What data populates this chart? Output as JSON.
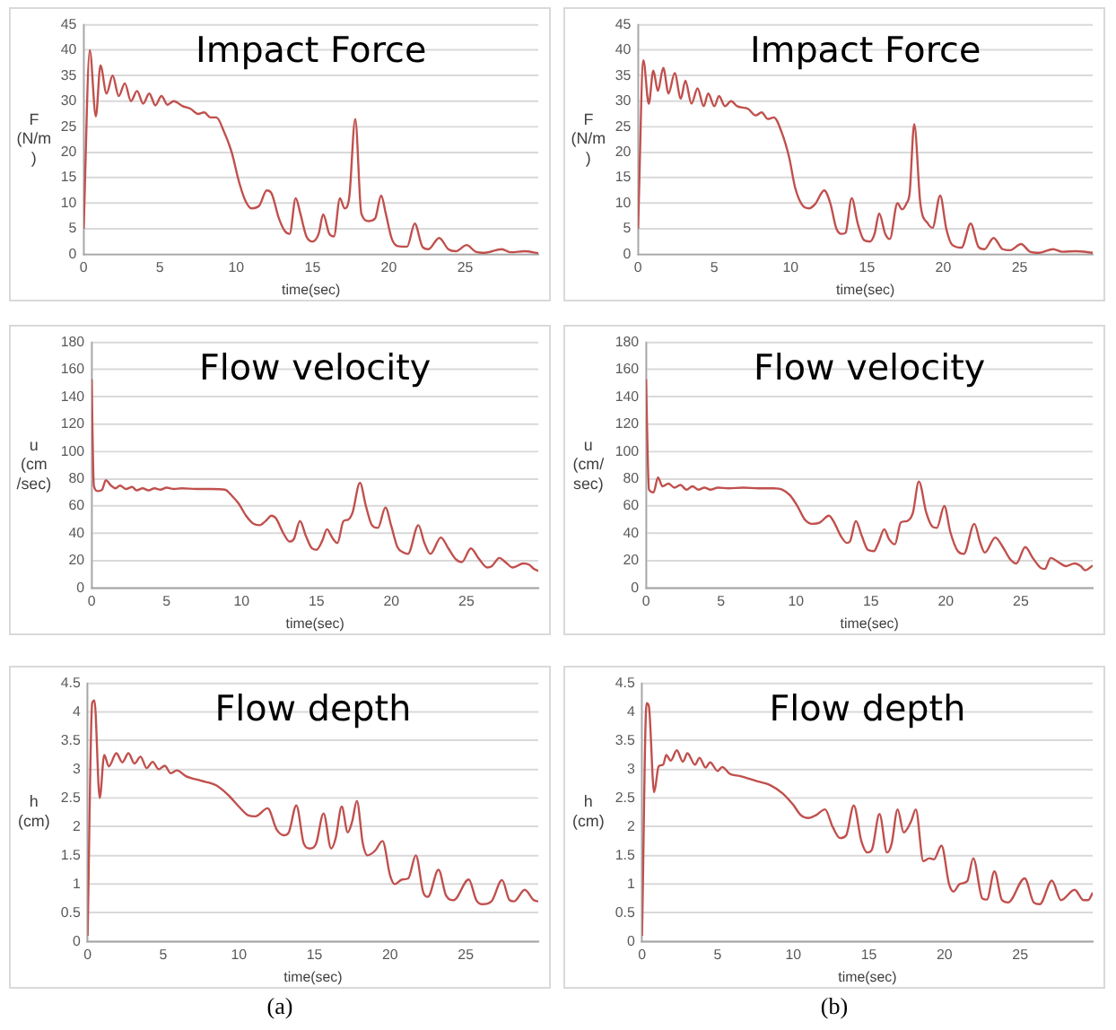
{
  "chart_data": [
    {
      "type": "line",
      "title": "Impact Force",
      "xlabel": "time(sec)",
      "ylabel": "F (N/m)",
      "color": "#c0504d",
      "marker": "none",
      "grid": "y",
      "xlim": [
        0,
        29.8
      ],
      "xticks": [
        0,
        5,
        10,
        15,
        20,
        25
      ],
      "ylim": [
        0,
        45
      ],
      "yticks": [
        0,
        5,
        10,
        15,
        20,
        25,
        30,
        35,
        40,
        45
      ],
      "x": [
        0,
        0.4,
        0.8,
        1.1,
        1.5,
        1.9,
        2.3,
        2.7,
        3.1,
        3.5,
        3.9,
        4.3,
        4.7,
        5.1,
        5.5,
        5.9,
        6.5,
        7,
        7.5,
        7.9,
        8.3,
        8.7,
        9.2,
        9.7,
        10.2,
        10.6,
        11,
        11.5,
        12,
        12.3,
        12.8,
        13.2,
        13.5,
        13.9,
        14.2,
        14.6,
        15,
        15.4,
        15.7,
        16.1,
        16.4,
        16.8,
        17.1,
        17.4,
        17.8,
        18.2,
        18.7,
        19.1,
        19.5,
        19.8,
        20.2,
        20.6,
        21.2,
        21.7,
        22.2,
        22.6,
        23.3,
        23.9,
        24.4,
        25.1,
        25.7,
        26.3,
        27.4,
        28,
        28.9,
        29.8
      ],
      "values": [
        5,
        40,
        27,
        37,
        31.5,
        35,
        31,
        33.5,
        30,
        32,
        29.5,
        31.5,
        29.2,
        31,
        29.3,
        30,
        29,
        28.5,
        27.5,
        27.8,
        26.8,
        26.8,
        24,
        20,
        14,
        10.5,
        9,
        9.5,
        12.5,
        12,
        7,
        4.5,
        4,
        11,
        8,
        3.5,
        2.5,
        4,
        7.8,
        4,
        3.5,
        11,
        9,
        11,
        26.5,
        8,
        6.5,
        7,
        11.5,
        8,
        3,
        1.6,
        1.5,
        6,
        1.5,
        1,
        3.2,
        1,
        0.6,
        1.8,
        0.5,
        0.3,
        1,
        0.4,
        0.6,
        0.2
      ]
    },
    {
      "type": "line",
      "title": "Impact Force",
      "xlabel": "time(sec)",
      "ylabel": "F (N/m)",
      "color": "#c0504d",
      "marker": "none",
      "grid": "y",
      "xlim": [
        0,
        29.8
      ],
      "xticks": [
        0,
        5,
        10,
        15,
        20,
        25
      ],
      "ylim": [
        0,
        45
      ],
      "yticks": [
        0,
        5,
        10,
        15,
        20,
        25,
        30,
        35,
        40,
        45
      ],
      "x": [
        0,
        0.35,
        0.7,
        1,
        1.3,
        1.65,
        2,
        2.4,
        2.8,
        3.1,
        3.5,
        3.9,
        4.3,
        4.6,
        5,
        5.3,
        5.7,
        6.1,
        6.5,
        7.2,
        7.7,
        8.1,
        8.5,
        8.9,
        9.4,
        9.9,
        10.3,
        10.8,
        11.2,
        11.6,
        12.2,
        12.6,
        13,
        13.4,
        13.6,
        14,
        14.4,
        14.8,
        15.2,
        15.5,
        15.8,
        16.2,
        16.5,
        17,
        17.3,
        17.6,
        17.8,
        18.1,
        18.5,
        19,
        19.3,
        19.8,
        20.2,
        20.6,
        21.2,
        21.8,
        22.3,
        22.7,
        23.3,
        23.9,
        24.4,
        25.1,
        25.7,
        26.3,
        27.2,
        27.8,
        28.7,
        29.8
      ],
      "values": [
        5,
        38,
        29.5,
        36,
        32,
        36.5,
        31.5,
        35.5,
        30.5,
        34,
        29.5,
        32.5,
        29,
        31.5,
        29,
        31,
        29,
        30,
        29,
        28.5,
        27.2,
        27.8,
        26.5,
        26.8,
        24,
        19,
        13,
        9.5,
        9,
        9.8,
        12.5,
        10,
        5,
        4,
        4.2,
        11,
        6,
        2.8,
        2.5,
        4,
        8,
        4,
        3,
        10,
        8.8,
        10,
        12,
        25.5,
        10,
        6,
        5.2,
        11.5,
        5,
        1.8,
        1.3,
        6,
        1.5,
        1,
        3.2,
        1,
        0.8,
        2,
        0.5,
        0.3,
        1,
        0.5,
        0.6,
        0.3
      ]
    },
    {
      "type": "line",
      "title": "Flow velocity",
      "xlabel": "time(sec)",
      "ylabel": "u (cm /sec)",
      "color": "#c0504d",
      "marker": "none",
      "grid": "y",
      "xlim": [
        0,
        29.8
      ],
      "xticks": [
        0,
        5,
        10,
        15,
        20,
        25
      ],
      "ylim": [
        0,
        180
      ],
      "yticks": [
        0,
        20,
        40,
        60,
        80,
        100,
        120,
        140,
        160,
        180
      ],
      "x": [
        0,
        0.15,
        0.4,
        0.7,
        0.95,
        1.3,
        1.6,
        1.9,
        2.3,
        2.7,
        3,
        3.4,
        3.8,
        4.2,
        4.6,
        5,
        5.5,
        6,
        7,
        8,
        8.9,
        9.4,
        9.8,
        10.3,
        10.8,
        11.2,
        11.6,
        12,
        12.3,
        12.8,
        13.2,
        13.5,
        13.9,
        14.3,
        14.7,
        15,
        15.4,
        15.7,
        16.1,
        16.4,
        16.8,
        17.1,
        17.4,
        17.9,
        18.3,
        18.7,
        19.1,
        19.6,
        20,
        20.4,
        20.8,
        21.1,
        21.8,
        22.2,
        22.6,
        23.3,
        23.8,
        24.3,
        24.7,
        25.3,
        25.8,
        26.4,
        26.7,
        27.2,
        27.6,
        28.1,
        28.8,
        29.2,
        29.5,
        29.8
      ],
      "values": [
        153,
        75,
        71,
        72,
        79,
        75,
        73,
        75,
        72.5,
        74,
        71.5,
        73,
        71.5,
        73,
        72,
        73.5,
        72.5,
        73,
        72.5,
        72.5,
        72,
        67,
        62,
        53,
        47,
        46,
        49,
        53,
        51,
        40,
        34,
        36,
        49,
        38,
        29,
        28,
        35,
        43,
        36,
        33,
        49,
        50,
        55,
        77,
        60,
        46,
        44,
        59,
        45,
        30,
        26,
        25,
        46,
        33,
        25,
        37,
        29,
        21,
        19,
        29,
        22,
        15,
        16,
        22,
        19,
        15,
        18,
        17,
        14,
        12.5
      ]
    },
    {
      "type": "line",
      "title": "Flow velocity",
      "xlabel": "time(sec)",
      "ylabel": "u (cm/ sec)",
      "color": "#c0504d",
      "marker": "none",
      "grid": "y",
      "xlim": [
        0,
        29.8
      ],
      "xticks": [
        0,
        5,
        10,
        15,
        20,
        25
      ],
      "ylim": [
        0,
        180
      ],
      "yticks": [
        0,
        20,
        40,
        60,
        80,
        100,
        120,
        140,
        160,
        180
      ],
      "x": [
        0,
        0.2,
        0.5,
        0.8,
        1.1,
        1.5,
        1.9,
        2.3,
        2.7,
        3.1,
        3.5,
        3.9,
        4.3,
        4.8,
        5.5,
        6.5,
        7.5,
        8.5,
        9.1,
        9.6,
        10.1,
        10.6,
        11.1,
        11.6,
        12.2,
        12.6,
        13,
        13.4,
        13.6,
        14,
        14.4,
        14.8,
        15.2,
        15.5,
        15.9,
        16.2,
        16.6,
        17,
        17.4,
        17.8,
        18.2,
        18.7,
        19.1,
        19.4,
        19.9,
        20.3,
        20.8,
        21.2,
        21.9,
        22.3,
        22.6,
        23.3,
        23.8,
        24.3,
        24.7,
        25.3,
        25.8,
        26.3,
        26.6,
        27,
        27.5,
        28,
        28.6,
        29,
        29.3,
        29.8
      ],
      "values": [
        153,
        72,
        70,
        81,
        74.5,
        76.5,
        73.5,
        75.5,
        72,
        74.5,
        72,
        73.5,
        72,
        73.5,
        73,
        73.5,
        73,
        73,
        72,
        68,
        60,
        50,
        47,
        48,
        53,
        47,
        38,
        33,
        34,
        49,
        38,
        28,
        27,
        33,
        43,
        36,
        32,
        48,
        49,
        55,
        78,
        55,
        45,
        44,
        60,
        41,
        27,
        25,
        47,
        33,
        26,
        37,
        30,
        21,
        18,
        30,
        22,
        15,
        14,
        22,
        19,
        16,
        18,
        16,
        13,
        16.5
      ]
    },
    {
      "type": "line",
      "title": "Flow depth",
      "xlabel": "time(sec)",
      "ylabel": "h (cm)",
      "color": "#c0504d",
      "marker": "none",
      "grid": "y",
      "xlim": [
        0,
        29.8
      ],
      "xticks": [
        0,
        5,
        10,
        15,
        20,
        25
      ],
      "ylim": [
        0,
        4.5
      ],
      "yticks": [
        0,
        0.5,
        1,
        1.5,
        2,
        2.5,
        3,
        3.5,
        4,
        4.5
      ],
      "annotations": [
        "(a)"
      ],
      "x": [
        0,
        0.3,
        0.45,
        0.8,
        1.1,
        1.4,
        1.9,
        2.3,
        2.7,
        3.1,
        3.5,
        3.9,
        4.3,
        4.7,
        5.1,
        5.5,
        5.9,
        6.5,
        7.5,
        8.5,
        9.3,
        10,
        10.6,
        11.1,
        11.9,
        12.5,
        13,
        13.3,
        13.8,
        14.3,
        14.7,
        15.1,
        15.6,
        16.1,
        16.4,
        16.8,
        17.2,
        17.5,
        17.8,
        18.2,
        18.5,
        19,
        19.5,
        20,
        20.3,
        20.8,
        21.2,
        21.7,
        22.2,
        22.5,
        23.2,
        23.7,
        24.2,
        25.2,
        25.7,
        26.1,
        26.7,
        27.4,
        27.9,
        28.2,
        28.9,
        29.5,
        29.8
      ],
      "values": [
        0.1,
        4.15,
        4.2,
        2.5,
        3.25,
        3.05,
        3.28,
        3.12,
        3.28,
        3.1,
        3.22,
        3.02,
        3.13,
        3,
        3.06,
        2.93,
        2.98,
        2.88,
        2.8,
        2.72,
        2.55,
        2.35,
        2.2,
        2.18,
        2.32,
        1.95,
        1.85,
        1.9,
        2.37,
        1.7,
        1.62,
        1.7,
        2.23,
        1.62,
        1.8,
        2.35,
        1.9,
        2.1,
        2.45,
        1.7,
        1.5,
        1.58,
        1.75,
        1.15,
        1,
        1.08,
        1.1,
        1.5,
        0.85,
        0.78,
        1.25,
        0.8,
        0.72,
        1.08,
        0.72,
        0.65,
        0.7,
        1.07,
        0.72,
        0.7,
        0.9,
        0.72,
        0.7
      ]
    },
    {
      "type": "line",
      "title": "Flow depth",
      "xlabel": "time(sec)",
      "ylabel": "h (cm)",
      "color": "#c0504d",
      "marker": "none",
      "grid": "y",
      "xlim": [
        0,
        29.8
      ],
      "xticks": [
        0,
        5,
        10,
        15,
        20,
        25
      ],
      "ylim": [
        0,
        4.5
      ],
      "yticks": [
        0,
        0.5,
        1,
        1.5,
        2,
        2.5,
        3,
        3.5,
        4,
        4.5
      ],
      "annotations": [
        "(b)"
      ],
      "x": [
        0,
        0.3,
        0.45,
        0.8,
        1.1,
        1.4,
        1.6,
        1.9,
        2.3,
        2.7,
        3,
        3.5,
        3.8,
        4.2,
        4.5,
        5,
        5.3,
        5.8,
        6.5,
        7.5,
        8.5,
        9.3,
        10,
        10.5,
        11,
        11.5,
        12.1,
        12.6,
        13.1,
        13.5,
        14,
        14.5,
        14.9,
        15.2,
        15.7,
        16.2,
        16.5,
        16.9,
        17.3,
        17.8,
        18.1,
        18.6,
        19,
        19.3,
        19.8,
        20.3,
        20.6,
        21,
        21.5,
        21.9,
        22.5,
        22.8,
        23.3,
        23.8,
        24.2,
        25.3,
        25.9,
        26.3,
        27.1,
        27.7,
        28.6,
        29.2,
        29.5,
        29.8
      ],
      "values": [
        0.1,
        4.15,
        4.1,
        2.6,
        3.05,
        3.08,
        3.25,
        3.15,
        3.33,
        3.13,
        3.28,
        3.08,
        3.2,
        3.03,
        3.12,
        2.97,
        3.04,
        2.92,
        2.88,
        2.8,
        2.72,
        2.58,
        2.38,
        2.2,
        2.15,
        2.2,
        2.3,
        2,
        1.8,
        1.85,
        2.37,
        1.75,
        1.55,
        1.6,
        2.22,
        1.55,
        1.7,
        2.3,
        1.9,
        2.1,
        2.3,
        1.4,
        1.45,
        1.43,
        1.67,
        1,
        0.87,
        1,
        1.05,
        1.45,
        0.75,
        0.73,
        1.22,
        0.72,
        0.68,
        1.1,
        0.68,
        0.65,
        1.06,
        0.72,
        0.9,
        0.72,
        0.72,
        0.85
      ]
    }
  ]
}
